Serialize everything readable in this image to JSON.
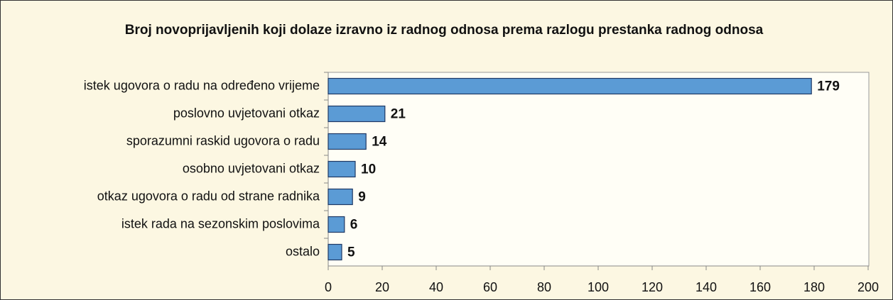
{
  "chart_data": {
    "type": "bar",
    "orientation": "horizontal",
    "title": "Broj novoprijavljenih koji dolaze izravno iz radnog odnosa prema razlogu prestanka radnog odnosa",
    "categories": [
      "istek ugovora o radu na određeno vrijeme",
      "poslovno uvjetovani otkaz",
      "sporazumni raskid ugovora o radu",
      "osobno uvjetovani otkaz",
      "otkaz ugovora o radu od strane radnika",
      "istek rada na sezonskim poslovima",
      "ostalo"
    ],
    "values": [
      179,
      21,
      14,
      10,
      9,
      6,
      5
    ],
    "color": "#5b9bd5",
    "xlim": [
      0,
      200
    ],
    "xticks": [
      0,
      20,
      40,
      60,
      80,
      100,
      120,
      140,
      160,
      180,
      200
    ],
    "grid": false
  }
}
